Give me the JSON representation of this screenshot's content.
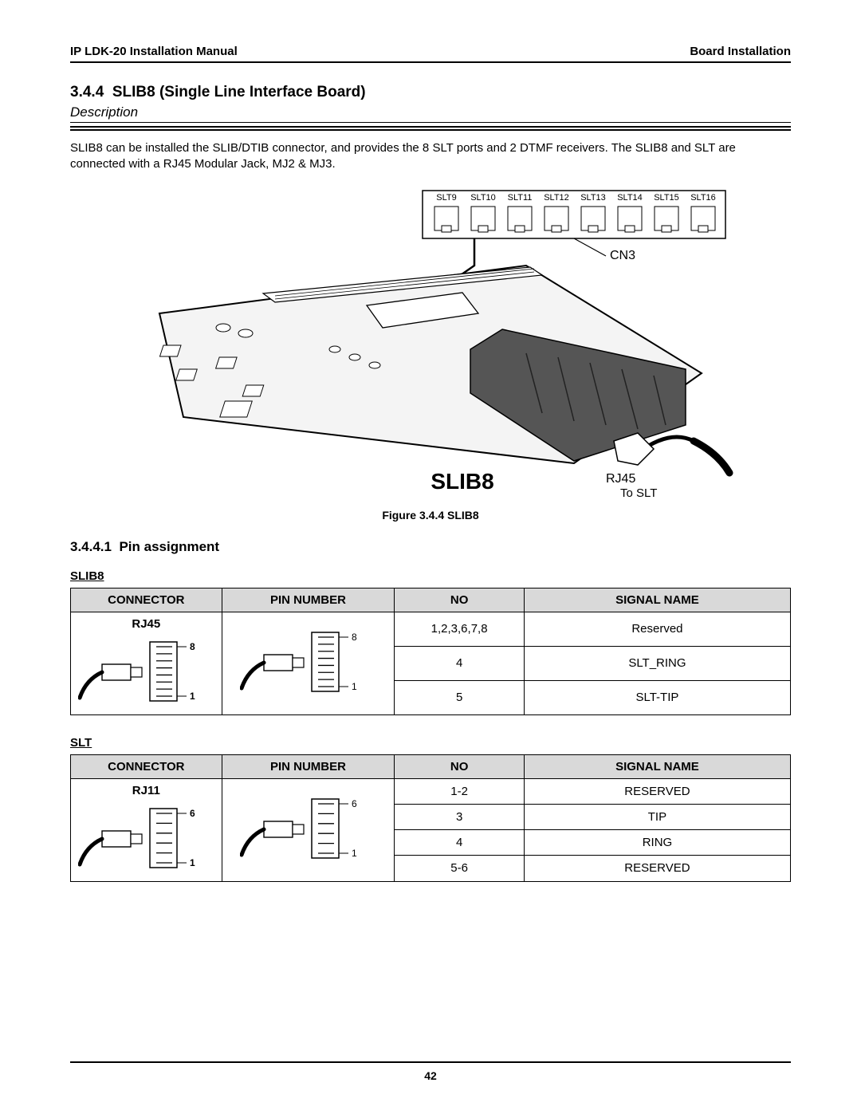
{
  "header": {
    "left": "IP LDK-20 Installation Manual",
    "right": "Board Installation"
  },
  "section": {
    "number": "3.4.4",
    "title": "SLIB8 (Single Line Interface Board)",
    "description_label": "Description",
    "body": "SLIB8 can be installed the SLIB/DTIB connector, and provides the 8 SLT ports and 2 DTMF receivers. The SLIB8 and SLT are connected with a RJ45 Modular Jack, MJ2 & MJ3."
  },
  "figure": {
    "slt_labels": [
      "SLT9",
      "SLT10",
      "SLT11",
      "SLT12",
      "SLT13",
      "SLT14",
      "SLT15",
      "SLT16"
    ],
    "cn_label": "CN3",
    "board_label": "SLIB8",
    "jack_label": "RJ45",
    "to_label": "To SLT",
    "caption": "Figure 3.4.4 SLIB8"
  },
  "subsection": {
    "number": "3.4.4.1",
    "title": "Pin assignment"
  },
  "tables": {
    "headers": [
      "CONNECTOR",
      "PIN NUMBER",
      "NO",
      "SIGNAL NAME"
    ],
    "slib8": {
      "label": "SLIB8",
      "connector": "RJ45",
      "pin_top": "8",
      "pin_bottom": "1",
      "pin_count": 8,
      "rows": [
        {
          "no": "1,2,3,6,7,8",
          "sig": "Reserved"
        },
        {
          "no": "4",
          "sig": "SLT_RING"
        },
        {
          "no": "5",
          "sig": "SLT-TIP"
        }
      ],
      "col_widths": [
        "21%",
        "24%",
        "18%",
        "37%"
      ]
    },
    "slt": {
      "label": "SLT",
      "connector": "RJ11",
      "pin_top": "6",
      "pin_bottom": "1",
      "pin_count": 6,
      "rows": [
        {
          "no": "1-2",
          "sig": "RESERVED"
        },
        {
          "no": "3",
          "sig": "TIP"
        },
        {
          "no": "4",
          "sig": "RING"
        },
        {
          "no": "5-6",
          "sig": "RESERVED"
        }
      ],
      "col_widths": [
        "21%",
        "24%",
        "18%",
        "37%"
      ]
    }
  },
  "page_number": "42",
  "colors": {
    "header_bg": "#d9d9d9",
    "line": "#000000",
    "text": "#000000",
    "board_fill": "#f4f4f4",
    "board_stroke": "#000000"
  }
}
